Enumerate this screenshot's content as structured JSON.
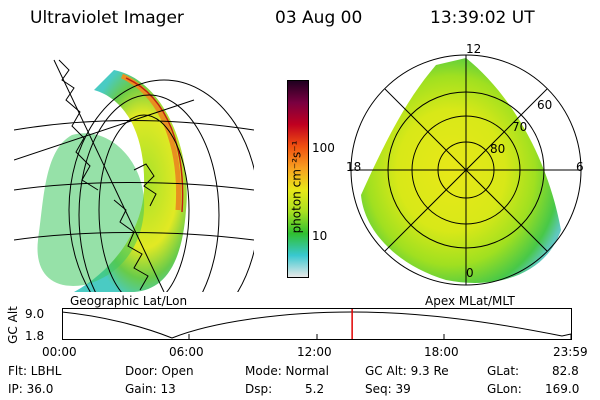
{
  "header": {
    "instrument": "Ultraviolet Imager",
    "date": "03 Aug 00",
    "time": "13:39:02 UT"
  },
  "left_panel": {
    "caption": "Geographic Lat/Lon"
  },
  "right_panel": {
    "caption": "Apex MLat/MLT",
    "mlt_labels": {
      "top": "12",
      "left": "18",
      "right": "6",
      "bottom": "0"
    },
    "lat_labels": [
      "60",
      "70",
      "80"
    ]
  },
  "colorbar": {
    "unit_label": "photon cm⁻²s⁻¹",
    "ticks": [
      "100",
      "10"
    ],
    "stops": [
      "#e8e8e8",
      "#38c8d0",
      "#30c030",
      "#a8e020",
      "#e8e818",
      "#f8a020",
      "#f05010",
      "#c00020",
      "#7a0040",
      "#200020"
    ]
  },
  "altitude_plot": {
    "ylabel": "GC Alt",
    "yticks": [
      "9.0",
      "1.8"
    ],
    "xticks": [
      "00:00",
      "06:00",
      "12:00",
      "18:00",
      "23:59"
    ],
    "current_time_fraction": 0.57,
    "marker_color": "#e00000"
  },
  "info": {
    "filter": "Flt: LBHL",
    "ip": "IP: 36.0",
    "door": "Door: Open",
    "gain": "Gain: 13",
    "mode": "Mode: Normal",
    "dsp_label": "Dsp:",
    "dsp_value": "5.2",
    "gc_alt": "GC Alt: 9.3 Re",
    "seq": "Seq: 39",
    "glat_label": "GLat:",
    "glat_value": "82.8",
    "glon_label": "GLon:",
    "glon_value": "169.0"
  }
}
